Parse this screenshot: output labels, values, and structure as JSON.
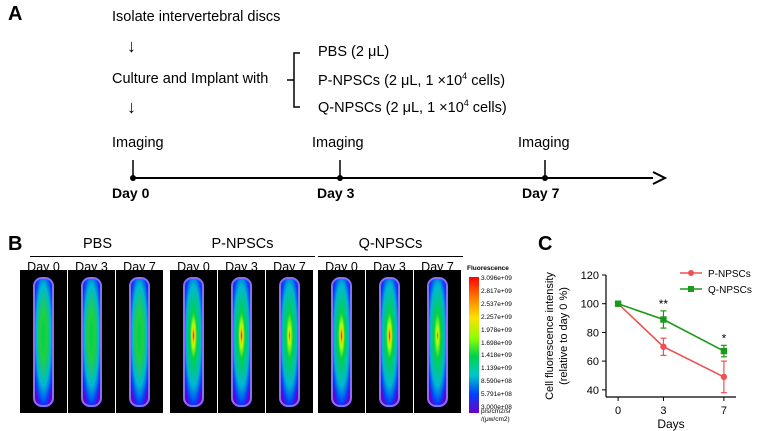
{
  "panel_a": {
    "letter": "A",
    "step1": "Isolate intervertebral discs",
    "step2": "Culture and Implant with",
    "treatments": [
      {
        "name": "PBS (2 μL)"
      },
      {
        "name": "P-NPSCs (2 μL, 1 ×10",
        "sup": "4",
        "suffix": " cells)"
      },
      {
        "name": "Q-NPSCs (2 μL, 1 ×10",
        "sup": "4",
        "suffix": " cells)"
      }
    ],
    "imaging_label": "Imaging",
    "timeline_days": [
      "Day 0",
      "Day 3",
      "Day 7"
    ]
  },
  "panel_b": {
    "letter": "B",
    "groups": [
      "PBS",
      "P-NPSCs",
      "Q-NPSCs"
    ],
    "day_labels": [
      "Day 0",
      "Day 3",
      "Day 7"
    ],
    "colorbar_title": "Fluorescence",
    "colorbar_ticks": [
      "3.096e+09",
      "2.817e+09",
      "2.537e+09",
      "2.257e+09",
      "1.978e+09",
      "1.698e+09",
      "1.418e+09",
      "1.139e+09",
      "8.590e+08",
      "5.791e+08",
      "3.000e+08"
    ],
    "colorbar_unit_1": "p/s/cm2/sr",
    "colorbar_unit_2": "/(μw/cm2)",
    "colors": {
      "low": "#6a00c8",
      "mid": "#00c800",
      "high": "#ff0000"
    }
  },
  "chart_data": {
    "type": "line",
    "panel_letter": "C",
    "x": [
      0,
      3,
      7
    ],
    "x_ticks": [
      "0",
      "3",
      "7"
    ],
    "y_ticks": [
      "40",
      "60",
      "80",
      "100",
      "120"
    ],
    "xlabel": "Days",
    "ylabel_line1": "Cell fluorescence intensity",
    "ylabel_line2": "(relative to day 0 %)",
    "ylim": [
      35,
      120
    ],
    "series": [
      {
        "name": "P-NPSCs",
        "values": [
          100,
          70,
          49
        ],
        "errors": [
          0,
          6,
          11
        ],
        "color": "#f05050",
        "marker": "circle"
      },
      {
        "name": "Q-NPSCs",
        "values": [
          100,
          89,
          67
        ],
        "errors": [
          0,
          6,
          4
        ],
        "color": "#1a9a1a",
        "marker": "square"
      }
    ],
    "annotations": [
      {
        "x": 3,
        "text": "**"
      },
      {
        "x": 7,
        "text": "*"
      }
    ],
    "legend_position": "top-right"
  }
}
